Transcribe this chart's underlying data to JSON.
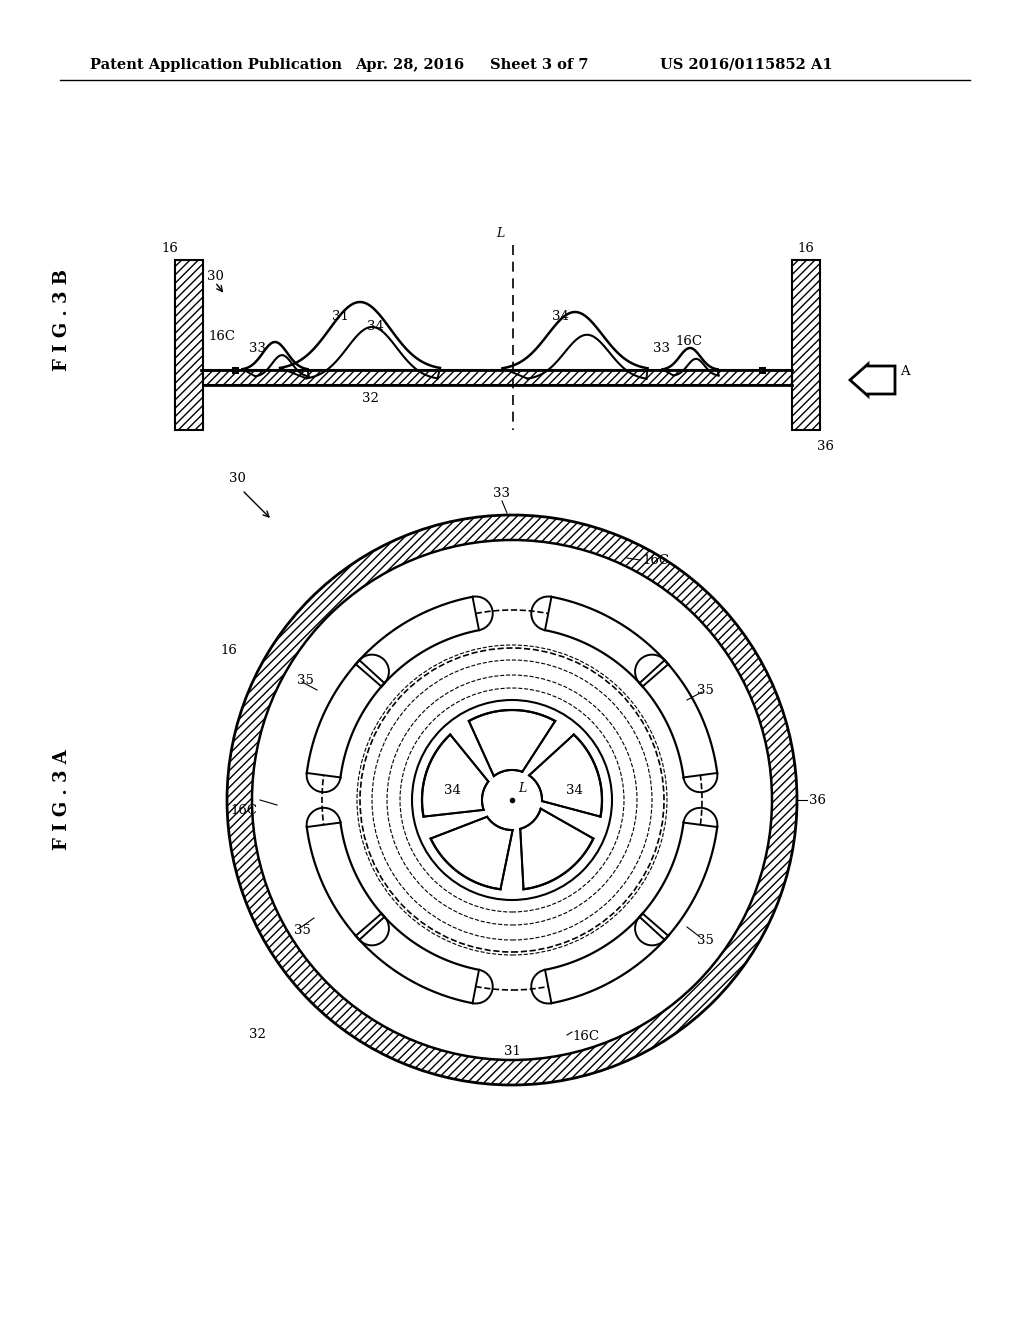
{
  "bg_color": "#ffffff",
  "header_text": "Patent Application Publication",
  "header_date": "Apr. 28, 2016",
  "header_sheet": "Sheet 3 of 7",
  "header_patent": "US 2016/0115852 A1",
  "fig_label_3B": "F I G . 3 B",
  "fig_label_3A": "F I G . 3 A",
  "label_fs": 9.5
}
